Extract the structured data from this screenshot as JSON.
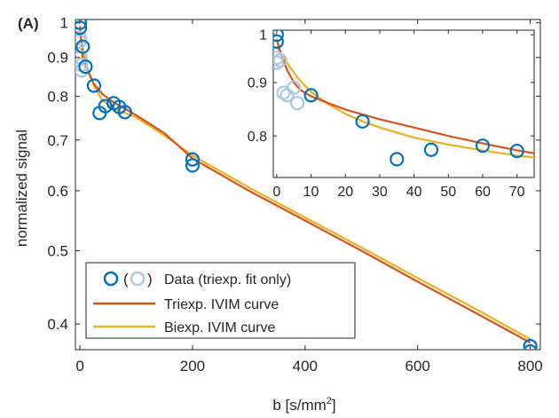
{
  "panel_label": "(A)",
  "colors": {
    "data": "#0072BD",
    "data_excluded": "#A9C9E2",
    "triexp": "#D95319",
    "biexp": "#EDB120",
    "axis": "#262626"
  },
  "legend": {
    "data_label": "Data (triexp. fit only)",
    "triexp_label": "Triexp. IVIM curve",
    "biexp_label": "Biexp. IVIM curve"
  },
  "chart_data": [
    {
      "id": "main",
      "type": "scatter",
      "xlabel": "b [s/mm",
      "xlabel_superscript": "2",
      "xlabel_suffix": "]",
      "ylabel": "normalized signal",
      "xlim": [
        -8,
        818
      ],
      "ylim": [
        0.37,
        1.01
      ],
      "yscale": "log",
      "xticks": [
        0,
        200,
        400,
        600,
        800
      ],
      "yticks": [
        0.4,
        0.5,
        0.6,
        0.7,
        0.8,
        0.9,
        1
      ],
      "ytick_labels": [
        "0.4",
        "0.5",
        "0.6",
        "0.7",
        "0.8",
        "0.9",
        "1"
      ],
      "legend_position": "lower-left",
      "grid": false,
      "series": [
        {
          "name": "Data",
          "kind": "points",
          "colorKey": "data",
          "x": [
            0,
            0,
            5,
            10,
            25,
            35,
            45,
            60,
            70,
            80,
            200,
            200,
            800,
            800
          ],
          "y": [
            1.0,
            0.985,
            0.93,
            0.875,
            0.826,
            0.76,
            0.776,
            0.783,
            0.774,
            0.762,
            0.648,
            0.66,
            0.374,
            0.368
          ]
        },
        {
          "name": "(triexp. fit only)",
          "kind": "points",
          "colorKey": "data_excluded",
          "x": [
            0,
            0,
            1,
            2,
            3
          ],
          "y": [
            0.955,
            0.945,
            0.9,
            0.88,
            0.865
          ]
        },
        {
          "name": "Triexp. IVIM curve",
          "kind": "line",
          "colorKey": "triexp",
          "x": [
            0,
            5,
            10,
            15,
            25,
            40,
            60,
            80,
            100,
            150,
            200,
            300,
            400,
            500,
            600,
            700,
            800
          ],
          "y": [
            0.99,
            0.9,
            0.875,
            0.86,
            0.83,
            0.805,
            0.785,
            0.77,
            0.755,
            0.715,
            0.662,
            0.6,
            0.548,
            0.5,
            0.455,
            0.415,
            0.378
          ]
        },
        {
          "name": "Biexp. IVIM curve",
          "kind": "line",
          "colorKey": "biexp",
          "x": [
            0,
            5,
            10,
            15,
            25,
            40,
            60,
            80,
            100,
            150,
            200,
            300,
            400,
            500,
            600,
            700,
            800
          ],
          "y": [
            0.975,
            0.925,
            0.89,
            0.865,
            0.825,
            0.79,
            0.77,
            0.76,
            0.75,
            0.71,
            0.668,
            0.606,
            0.553,
            0.505,
            0.46,
            0.42,
            0.382
          ]
        }
      ]
    },
    {
      "id": "inset",
      "type": "scatter",
      "xlim": [
        -1,
        75
      ],
      "ylim": [
        0.73,
        1.01
      ],
      "yscale": "log",
      "xticks": [
        0,
        10,
        20,
        30,
        40,
        50,
        60,
        70
      ],
      "yticks": [
        0.8,
        0.9,
        1
      ],
      "ytick_labels": [
        "0.8",
        "0.9",
        "1"
      ],
      "grid": false,
      "series": [
        {
          "name": "Data",
          "kind": "points",
          "colorKey": "data",
          "x": [
            0,
            0,
            10,
            25,
            35,
            45,
            60,
            70
          ],
          "y": [
            1.0,
            0.985,
            0.875,
            0.826,
            0.76,
            0.776,
            0.783,
            0.774
          ]
        },
        {
          "name": "(triexp. fit only)",
          "kind": "points",
          "colorKey": "data_excluded",
          "x": [
            0,
            0,
            1,
            2,
            3,
            5,
            6
          ],
          "y": [
            0.95,
            0.94,
            0.945,
            0.88,
            0.875,
            0.89,
            0.86
          ]
        },
        {
          "name": "Triexp. IVIM curve",
          "kind": "line",
          "colorKey": "triexp",
          "x": [
            0,
            1,
            2,
            3,
            5,
            7,
            10,
            15,
            20,
            30,
            40,
            50,
            60,
            70,
            75
          ],
          "y": [
            0.99,
            0.965,
            0.945,
            0.925,
            0.9,
            0.885,
            0.873,
            0.86,
            0.848,
            0.83,
            0.815,
            0.8,
            0.787,
            0.775,
            0.77
          ]
        },
        {
          "name": "Biexp. IVIM curve",
          "kind": "line",
          "colorKey": "biexp",
          "x": [
            0,
            2,
            4,
            6,
            8,
            10,
            15,
            20,
            25,
            30,
            40,
            50,
            60,
            70,
            75
          ],
          "y": [
            0.975,
            0.95,
            0.93,
            0.91,
            0.895,
            0.882,
            0.858,
            0.84,
            0.826,
            0.815,
            0.797,
            0.785,
            0.775,
            0.766,
            0.763
          ]
        }
      ]
    }
  ]
}
